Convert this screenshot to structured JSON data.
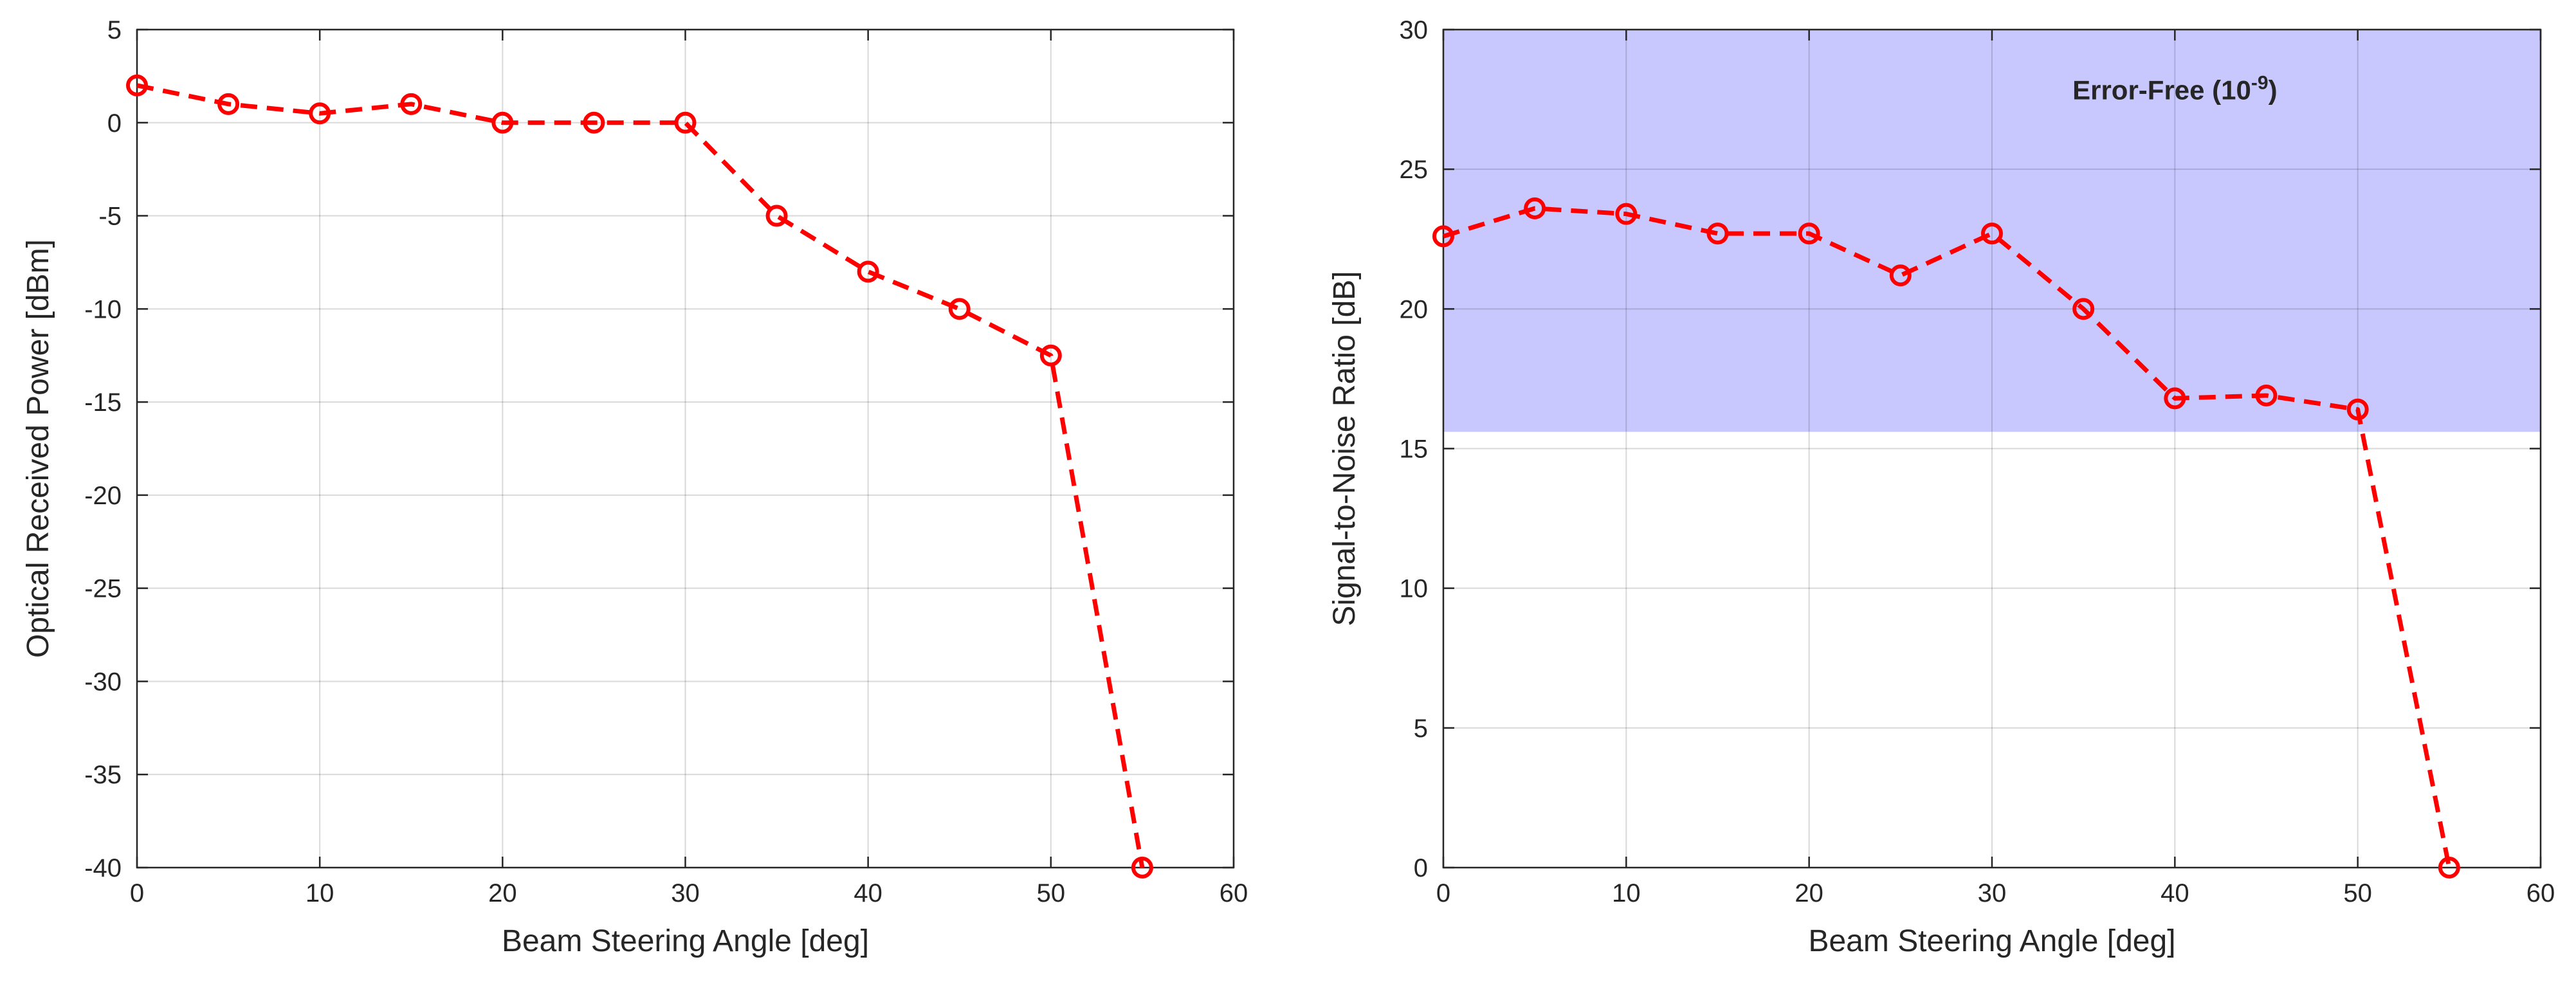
{
  "chart_data": [
    {
      "type": "line",
      "xlabel": "Beam Steering Angle [deg]",
      "ylabel": "Optical Received Power [dBm]",
      "xlim": [
        0,
        60
      ],
      "ylim": [
        -40,
        5
      ],
      "xticks": [
        0,
        10,
        20,
        30,
        40,
        50,
        60
      ],
      "yticks": [
        -40,
        -35,
        -30,
        -25,
        -20,
        -15,
        -10,
        -5,
        0,
        5
      ],
      "grid": true,
      "series": [
        {
          "color": "#ff0000",
          "line_style": "dashed",
          "marker": "circle",
          "x": [
            0,
            5,
            10,
            15,
            20,
            25,
            30,
            35,
            40,
            45,
            50,
            55
          ],
          "y": [
            2,
            1,
            0.5,
            1,
            0,
            0,
            0,
            -5,
            -8,
            -10,
            -12.5,
            -40
          ]
        }
      ]
    },
    {
      "type": "line",
      "xlabel": "Beam Steering Angle [deg]",
      "ylabel": "Signal-to-Noise Ratio [dB]",
      "xlim": [
        0,
        60
      ],
      "ylim": [
        0,
        30
      ],
      "xticks": [
        0,
        10,
        20,
        30,
        40,
        50,
        60
      ],
      "yticks": [
        0,
        5,
        10,
        15,
        20,
        25,
        30
      ],
      "grid": true,
      "shaded_region": {
        "y_range": [
          15.6,
          30
        ],
        "color": "#c8c8ff",
        "label": "Error-Free (10",
        "label_superscript": "-9",
        "label_suffix": ")",
        "label_x": 40,
        "label_y": 27.5
      },
      "series": [
        {
          "color": "#ff0000",
          "line_style": "dashed",
          "marker": "circle",
          "x": [
            0,
            5,
            10,
            15,
            20,
            25,
            30,
            35,
            40,
            45,
            50,
            55
          ],
          "y": [
            22.6,
            23.6,
            23.4,
            22.7,
            22.7,
            21.2,
            22.7,
            20,
            16.8,
            16.9,
            16.4,
            0
          ]
        }
      ]
    }
  ]
}
